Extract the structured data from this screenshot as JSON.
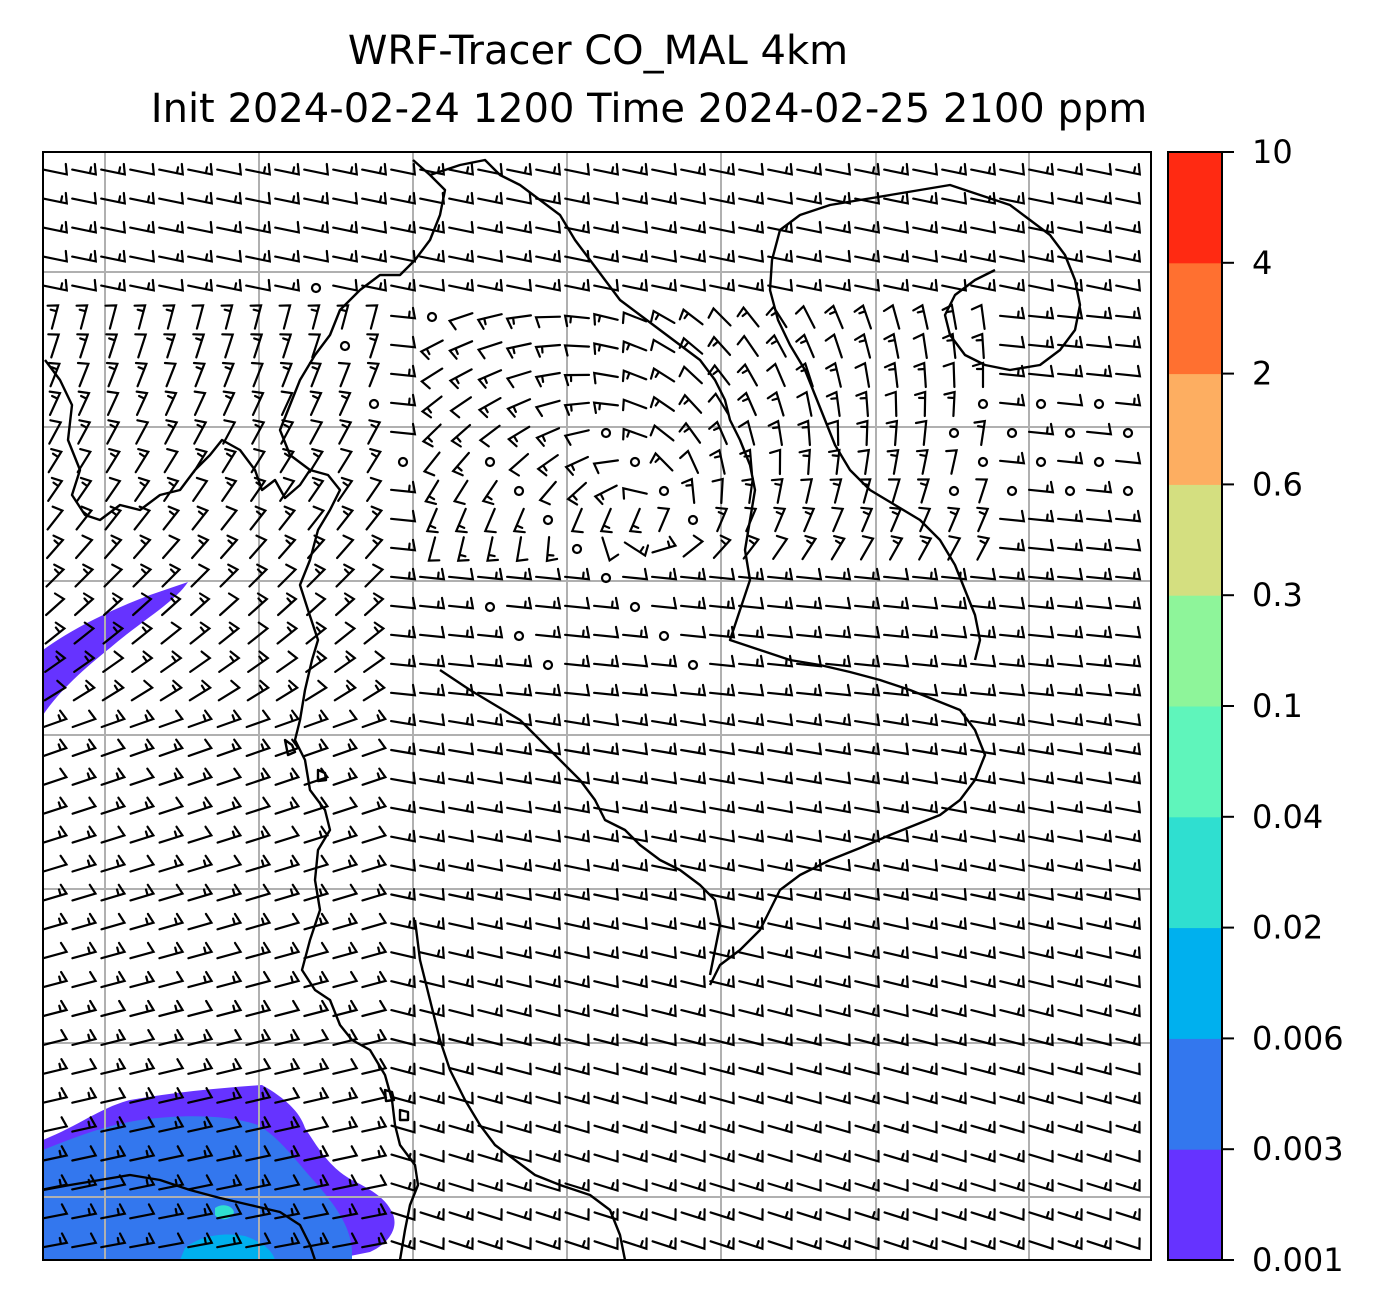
{
  "title": {
    "line1": "WRF-Tracer CO_MAL 4km",
    "line2": "Init 2024-02-24 1200 Time 2024-02-25 2100 ppm"
  },
  "colorbar": {
    "levels": [
      "0.001",
      "0.003",
      "0.006",
      "0.02",
      "0.04",
      "0.1",
      "0.3",
      "0.6",
      "2",
      "4",
      "10"
    ],
    "colors": [
      "#6633ff",
      "#3377ee",
      "#00b0ee",
      "#2fdfd0",
      "#5ff5bb",
      "#8ef59a",
      "#d4df80",
      "#fdae61",
      "#ff7030",
      "#ff2a12"
    ]
  },
  "map": {
    "gridlines": true,
    "field": "CO_MAL tracer concentration",
    "overlay": "wind barbs",
    "coastline_color": "#000000",
    "grid_color": "#b0b0b0"
  }
}
